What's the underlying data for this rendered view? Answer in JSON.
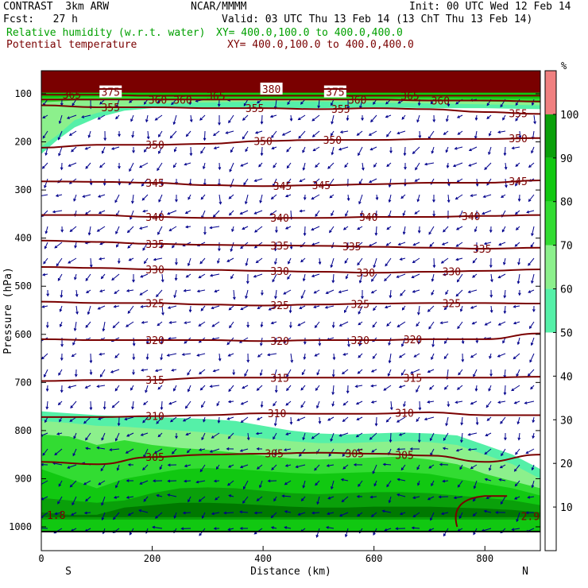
{
  "header": {
    "model": "CONTRAST  3km ARW",
    "org": "NCAR/MMMM",
    "init": "Init: 00 UTC Wed 12 Feb 14",
    "fcst": "Fcst:   27 h",
    "valid": "Valid: 03 UTC Thu 13 Feb 14 (13 ChT Thu 13 Feb 14)",
    "field1": "Relative humidity (w.r.t. water)",
    "field1_xy": "XY= 400.0,100.0 to 400.0,400.0",
    "field2": "Potential temperature",
    "field2_xy": "XY= 400.0,100.0 to 400.0,400.0"
  },
  "colors": {
    "rh_50": "#55f0a8",
    "rh_60": "#8cf08c",
    "rh_70": "#32dc32",
    "rh_80": "#11c811",
    "rh_90": "#0aa00a",
    "rh_100": "#007800",
    "rh_top": "#f08080",
    "theta_line": "#7a0000",
    "top_band": "#7a0000",
    "wind": "#00008c"
  },
  "chart_data": {
    "type": "cross-section",
    "title": "Relative humidity (w.r.t. water) and Potential temperature",
    "xlabel": "Distance (km)",
    "ylabel": "Pressure (hPa)",
    "xlim": [
      0,
      900
    ],
    "ylim": [
      1020,
      50
    ],
    "x_ticks": [
      0,
      200,
      400,
      600,
      800
    ],
    "y_ticks": [
      100,
      200,
      300,
      400,
      500,
      600,
      700,
      800,
      900,
      1000
    ],
    "x_end_labels": {
      "left": "S",
      "right": "N"
    },
    "colorbar": {
      "unit": "%",
      "ticks": [
        10,
        20,
        30,
        40,
        50,
        60,
        70,
        80,
        90,
        100
      ],
      "filled_levels": [
        50,
        60,
        70,
        80,
        90,
        100
      ]
    },
    "theta_contours": [
      {
        "value": 305,
        "p": [
          865,
          870,
          855,
          850,
          848,
          846,
          848,
          852,
          865,
          850
        ],
        "labels": [
          {
            "x": 205,
            "text": "305"
          },
          {
            "x": 420,
            "text": "305"
          },
          {
            "x": 565,
            "text": "305"
          },
          {
            "x": 655,
            "text": "305"
          }
        ]
      },
      {
        "value": 310,
        "p": [
          772,
          772,
          770,
          768,
          764,
          765,
          765,
          762,
          768,
          768
        ],
        "labels": [
          {
            "x": 205,
            "text": "310"
          },
          {
            "x": 425,
            "text": "310"
          },
          {
            "x": 655,
            "text": "310"
          }
        ]
      },
      {
        "value": 315,
        "p": [
          697,
          695,
          695,
          690,
          690,
          690,
          690,
          690,
          690,
          688
        ],
        "labels": [
          {
            "x": 205,
            "text": "315"
          },
          {
            "x": 430,
            "text": "315"
          },
          {
            "x": 670,
            "text": "315"
          }
        ]
      },
      {
        "value": 320,
        "p": [
          610,
          612,
          612,
          612,
          614,
          612,
          612,
          610,
          610,
          598
        ],
        "labels": [
          {
            "x": 205,
            "text": "320"
          },
          {
            "x": 430,
            "text": "320"
          },
          {
            "x": 575,
            "text": "320"
          },
          {
            "x": 670,
            "text": "320"
          }
        ]
      },
      {
        "value": 325,
        "p": [
          532,
          535,
          535,
          538,
          540,
          538,
          536,
          535,
          535,
          536
        ],
        "labels": [
          {
            "x": 205,
            "text": "325"
          },
          {
            "x": 430,
            "text": "325"
          },
          {
            "x": 575,
            "text": "325"
          },
          {
            "x": 740,
            "text": "325"
          }
        ]
      },
      {
        "value": 330,
        "p": [
          460,
          462,
          465,
          466,
          468,
          470,
          472,
          470,
          468,
          465
        ],
        "labels": [
          {
            "x": 205,
            "text": "330"
          },
          {
            "x": 430,
            "text": "330"
          },
          {
            "x": 585,
            "text": "330"
          },
          {
            "x": 740,
            "text": "330"
          }
        ]
      },
      {
        "value": 335,
        "p": [
          405,
          408,
          412,
          414,
          415,
          416,
          418,
          420,
          422,
          420
        ],
        "labels": [
          {
            "x": 205,
            "text": "335"
          },
          {
            "x": 430,
            "text": "335"
          },
          {
            "x": 560,
            "text": "335"
          },
          {
            "x": 795,
            "text": "335"
          }
        ]
      },
      {
        "value": 340,
        "p": [
          352,
          352,
          356,
          358,
          358,
          358,
          356,
          356,
          354,
          352
        ],
        "labels": [
          {
            "x": 205,
            "text": "340"
          },
          {
            "x": 430,
            "text": "340"
          },
          {
            "x": 590,
            "text": "340"
          },
          {
            "x": 775,
            "text": "340"
          }
        ]
      },
      {
        "value": 345,
        "p": [
          282,
          283,
          285,
          290,
          292,
          290,
          288,
          285,
          285,
          280
        ],
        "labels": [
          {
            "x": 205,
            "text": "345"
          },
          {
            "x": 435,
            "text": "345"
          },
          {
            "x": 505,
            "text": "345"
          },
          {
            "x": 860,
            "text": "345"
          }
        ]
      },
      {
        "value": 350,
        "p": [
          212,
          206,
          206,
          204,
          198,
          196,
          196,
          194,
          194,
          192
        ],
        "labels": [
          {
            "x": 205,
            "text": "350"
          },
          {
            "x": 400,
            "text": "350"
          },
          {
            "x": 525,
            "text": "350"
          },
          {
            "x": 860,
            "text": "350"
          }
        ]
      },
      {
        "value": 355,
        "p": [
          124,
          128,
          128,
          130,
          130,
          132,
          130,
          132,
          138,
          142
        ],
        "labels": [
          {
            "x": 125,
            "text": "355"
          },
          {
            "x": 385,
            "text": "355"
          },
          {
            "x": 540,
            "text": "355"
          },
          {
            "x": 860,
            "text": "355"
          }
        ]
      },
      {
        "value": 360,
        "p": [
          112,
          112,
          112,
          112,
          112,
          112,
          112,
          114,
          114,
          116
        ],
        "labels": [
          {
            "x": 210,
            "text": "360"
          },
          {
            "x": 255,
            "text": "360"
          },
          {
            "x": 570,
            "text": "360"
          },
          {
            "x": 720,
            "text": "360"
          }
        ]
      },
      {
        "value": 365,
        "p": [
          102,
          102,
          104,
          104,
          104,
          104,
          104,
          104,
          104,
          104
        ],
        "labels": [
          {
            "x": 55,
            "text": "365"
          },
          {
            "x": 315,
            "text": "365"
          },
          {
            "x": 665,
            "text": "365"
          }
        ]
      },
      {
        "value": 375,
        "p": [
          96,
          96,
          96,
          96,
          96,
          96,
          96,
          96,
          96,
          96
        ],
        "labels": [
          {
            "x": 125,
            "text": "375"
          },
          {
            "x": 530,
            "text": "375"
          }
        ]
      },
      {
        "value": 380,
        "p": [
          90,
          90,
          90,
          90,
          90,
          90,
          90,
          90,
          90,
          90
        ],
        "labels": [
          {
            "x": 415,
            "text": "380"
          }
        ]
      }
    ],
    "theta_x": [
      0,
      100,
      200,
      300,
      400,
      500,
      600,
      700,
      800,
      900
    ],
    "side_labels": [
      {
        "x": 10,
        "p": 975,
        "text": "1.8"
      },
      {
        "x": 865,
        "p": 978,
        "text": "2.9"
      }
    ]
  }
}
